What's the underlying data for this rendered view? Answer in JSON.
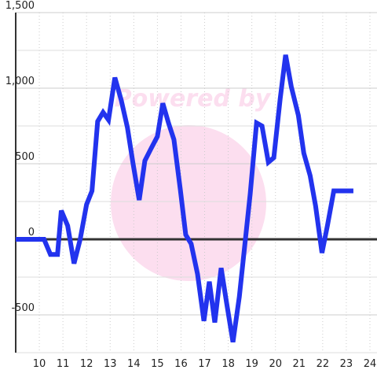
{
  "chart_data": {
    "type": "line",
    "watermark": "Powered by",
    "x": [
      9,
      10.2,
      10.47,
      10.77,
      10.93,
      11.2,
      11.47,
      11.73,
      12.0,
      12.23,
      12.47,
      12.7,
      12.93,
      13.2,
      13.47,
      13.73,
      13.97,
      14.23,
      14.47,
      14.73,
      15.0,
      15.23,
      15.47,
      15.7,
      15.97,
      16.2,
      16.43,
      16.7,
      16.97,
      17.2,
      17.43,
      17.7,
      17.93,
      18.2,
      18.47,
      18.7,
      18.93,
      19.2,
      19.43,
      19.7,
      19.93,
      20.2,
      20.43,
      20.67,
      20.97,
      21.2,
      21.47,
      21.7,
      21.97,
      22.2,
      22.47,
      23.3
    ],
    "series": [
      {
        "color": "#2233ee",
        "values": [
          0,
          0,
          -100,
          -100,
          190,
          90,
          -160,
          0,
          230,
          320,
          780,
          840,
          790,
          1070,
          920,
          740,
          500,
          260,
          520,
          600,
          680,
          900,
          770,
          660,
          330,
          30,
          -30,
          -230,
          -540,
          -280,
          -550,
          -190,
          -420,
          -680,
          -380,
          -40,
          300,
          770,
          750,
          510,
          540,
          930,
          1220,
          1010,
          820,
          570,
          420,
          220,
          -90,
          90,
          320,
          320
        ]
      }
    ],
    "xlim": [
      9,
      24.3
    ],
    "xticks": [
      10,
      11,
      12,
      13,
      14,
      15,
      16,
      17,
      18,
      19,
      20,
      21,
      22,
      23,
      24
    ],
    "ylim": [
      -750,
      1500
    ],
    "yticks": [
      {
        "value": -500,
        "label": "-500"
      },
      0,
      500,
      {
        "value": 1000,
        "label": "1,000"
      },
      {
        "value": 1500,
        "label": "1,500"
      }
    ],
    "y_minor_ticks": [
      -750,
      -250,
      250,
      750,
      1250
    ],
    "grid": true
  }
}
